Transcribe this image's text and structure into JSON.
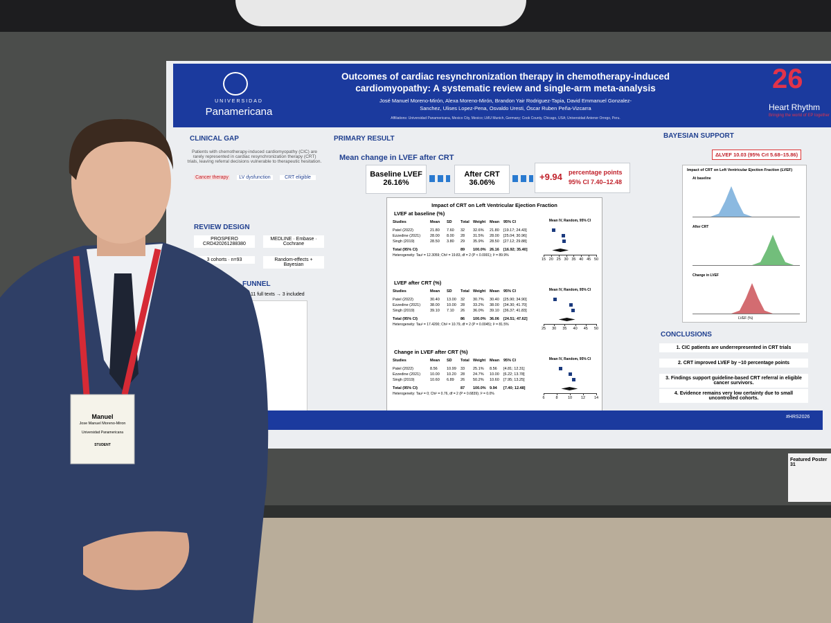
{
  "poster": {
    "logo": {
      "line1": "UNIVERSIDAD",
      "line2": "Panamericana"
    },
    "title": "Outcomes of cardiac resynchronization therapy in chemotherapy-induced cardiomyopathy: A systematic review and single-arm meta-analysis",
    "authors": "José Manuel Moreno-Mirón, Alexa Moreno-Mirón, Brandon Yair Rodriguez-Tapia, David Emmanuel Gonzalez-Sanchez, Ulises Lopez-Pena, Osvaldo Uresti, Óscar Ruben Peña-Vizcarra",
    "affiliations": "Affiliations: Universidad Panamericana, Mexico City, Mexico; LMU Munich, Germany; Cook County, Chicago, USA; Universidad Antenor Orrego, Peru.",
    "badge": {
      "number": "26",
      "name": "Heart Rhythm",
      "tagline": "Bringing the world of EP together"
    },
    "clinical_gap": {
      "heading": "CLINICAL GAP",
      "text": "Patients with chemotherapy-induced cardiomyopathy (CIC) are rarely represented in cardiac resynchronization therapy (CRT) trials, leaving referral decisions vulnerable to therapeutic hesitation.",
      "flow": [
        "Cancer therapy",
        "LV dysfunction",
        "CRT eligible"
      ]
    },
    "review_design": {
      "heading": "REVIEW DESIGN",
      "items": [
        "PROSPERO CRD420261288380",
        "MEDLINE · Embase · Cochrane",
        "3 cohorts · n=93",
        "Random-effects + Bayesian"
      ]
    },
    "funnel": {
      "heading": "FUNNEL",
      "text": "11 full texts → 3 included"
    },
    "primary_result": {
      "heading": "PRIMARY RESULT",
      "subheading": "Mean change in LVEF after CRT",
      "baseline": {
        "label": "Baseline LVEF",
        "value": "26.16%"
      },
      "after": {
        "label": "After CRT",
        "value": "36.06%"
      },
      "change": {
        "value": "+9.94",
        "unit": "percentage points",
        "ci": "95% CI 7.40–12.48"
      }
    },
    "forest": {
      "title": "Impact of CRT on Left Ventricular Ejection Fraction",
      "columns": [
        "Studies",
        "Mean",
        "SD",
        "Total",
        "Weight",
        "Mean",
        "95% CI"
      ],
      "plot_header": "Mean IV, Random, 95% CI",
      "panels": [
        {
          "title": "LVEF at baseline (%)",
          "rows": [
            [
              "Patel (2022)",
              "21.80",
              "7.60",
              "32",
              "32.6%",
              "21.80",
              "[19.17; 24.43]"
            ],
            [
              "Ezzedine (2021)",
              "28.00",
              "8.00",
              "28",
              "31.5%",
              "28.00",
              "[25.04; 30.96]"
            ],
            [
              "Singh (2019)",
              "28.50",
              "3.80",
              "29",
              "35.9%",
              "28.50",
              "[27.12; 29.88]"
            ]
          ],
          "total": [
            "Total (95% CI)",
            "89",
            "100.0%",
            "26.16",
            "[16.92; 35.40]"
          ],
          "heterogeneity": "Heterogeneity: Tau² = 12.3059; Chi² = 19.83, df = 2 (P < 0.0001); I² = 89.9%",
          "axis": [
            15,
            20,
            25,
            30,
            35,
            40,
            45,
            50
          ]
        },
        {
          "title": "LVEF after CRT (%)",
          "rows": [
            [
              "Patel (2022)",
              "30.40",
              "13.00",
              "32",
              "30.7%",
              "30.40",
              "[25.90; 34.90]"
            ],
            [
              "Ezzedine (2021)",
              "38.00",
              "10.00",
              "28",
              "33.2%",
              "38.00",
              "[34.30; 41.70]"
            ],
            [
              "Singh (2019)",
              "39.10",
              "7.10",
              "26",
              "36.0%",
              "39.10",
              "[36.37; 41.83]"
            ]
          ],
          "total": [
            "Total (95% CI)",
            "86",
            "100.0%",
            "36.06",
            "[24.51; 47.62]"
          ],
          "heterogeneity": "Heterogeneity: Tau² = 17.4200; Chi² = 10.79, df = 2 (P = 0.0045); I² = 81.5%",
          "axis": [
            25,
            30,
            35,
            40,
            45,
            50
          ]
        },
        {
          "title": "Change in LVEF after CRT (%)",
          "rows": [
            [
              "Patel (2022)",
              "8.56",
              "10.99",
              "33",
              "25.1%",
              "8.56",
              "[4.81; 12.31]"
            ],
            [
              "Ezzedine (2021)",
              "10.00",
              "10.20",
              "28",
              "24.7%",
              "10.00",
              "[6.22; 13.78]"
            ],
            [
              "Singh (2019)",
              "10.60",
              "6.89",
              "26",
              "50.2%",
              "10.60",
              "[7.95; 13.25]"
            ]
          ],
          "total": [
            "Total (95% CI)",
            "87",
            "100.0%",
            "9.94",
            "[7.40; 12.48]"
          ],
          "heterogeneity": "Heterogeneity: Tau² = 0; Chi² = 0.76, df = 2 (P = 0.6839); I² = 0.0%",
          "axis": [
            6,
            8,
            10,
            12,
            14
          ]
        }
      ]
    },
    "bayesian": {
      "heading": "BAYESIAN SUPPORT",
      "summary": "ΔLVEF 10.03 (95% CrI 5.68–15.86)",
      "chart_title": "Impact of CRT on Left Ventricular Ejection Fraction (LVEF)",
      "panels": [
        "At baseline",
        "After CRT",
        "Change in LVEF"
      ],
      "x_label": "LVEF (%)"
    },
    "conclusions": {
      "heading": "CONCLUSIONS",
      "items": [
        "1. CIC patients are underrepresented in CRT trials",
        "2. CRT improved LVEF by ~10 percentage points",
        "3. Findings support guideline-based CRT referral in eligible cancer survivors.",
        "4. Evidence remains very low certainty due to small uncontrolled cohorts."
      ]
    },
    "hashtag": "#HRS2026"
  },
  "name_badge": {
    "first": "Manuel",
    "full": "Jose Manuel Moreno-Miron",
    "affiliation": "Universidad Panamericana",
    "role": "STUDENT"
  },
  "featured": "Featured Poster 31"
}
